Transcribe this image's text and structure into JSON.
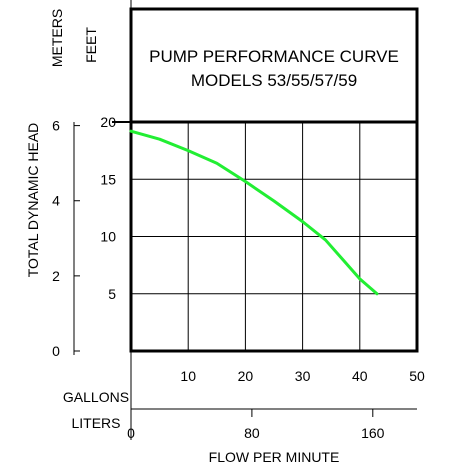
{
  "chart_data": {
    "type": "line",
    "title": "PUMP PERFORMANCE CURVE",
    "subtitle": "MODELS 53/55/57/59",
    "ylabel": "TOTAL DYNAMIC HEAD",
    "xlabel": "FLOW PER MINUTE",
    "y_feet_label": "FEET",
    "y_meters_label": "METERS",
    "x_gallons_label": "GALLONS",
    "x_liters_label": "LITERS",
    "xlim": [
      0,
      50
    ],
    "ylim": [
      0,
      20
    ],
    "x_gallons_ticks": [
      "10",
      "20",
      "30",
      "40",
      "50"
    ],
    "x_liters_ticks": [
      "0",
      "80",
      "160"
    ],
    "y_feet_ticks": [
      "5",
      "10",
      "15",
      "20"
    ],
    "y_meters_ticks": [
      "0",
      "2",
      "4",
      "6"
    ],
    "grid": true,
    "series": [
      {
        "color": "#22ee33",
        "x": [
          0,
          5,
          10,
          15,
          20,
          25,
          30,
          34,
          37,
          40,
          43
        ],
        "y": [
          19.2,
          18.5,
          17.5,
          16.4,
          14.8,
          13.1,
          11.3,
          9.7,
          8.0,
          6.3,
          5.0
        ]
      }
    ]
  }
}
